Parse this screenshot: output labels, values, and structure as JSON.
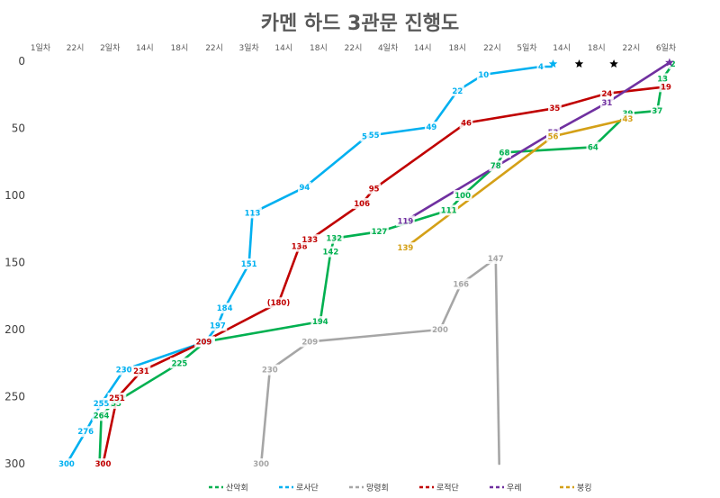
{
  "chart_data": {
    "type": "line",
    "title": "카멘 하드 3관문 진행도",
    "x_ticks": [
      "1일차",
      "22시",
      "2일차",
      "14시",
      "18시",
      "22시",
      "3일차",
      "14시",
      "18시",
      "22시",
      "4일차",
      "14시",
      "18시",
      "22시",
      "5일차",
      "14시",
      "18시",
      "22시",
      "6일차"
    ],
    "y_ticks": [
      "0",
      "50",
      "100",
      "150",
      "200",
      "250",
      "300"
    ],
    "ylim": [
      0,
      300
    ],
    "y_inverted": true,
    "legend_position": "bottom",
    "series": [
      {
        "name": "산악회",
        "color": "#00b050",
        "dash": "none",
        "points": [
          [
            1.7,
            300,
            ""
          ],
          [
            1.75,
            264,
            "264"
          ],
          [
            2.1,
            255,
            "255"
          ],
          [
            4.0,
            225,
            "225"
          ],
          [
            4.75,
            209,
            "209"
          ],
          [
            8.05,
            194,
            "194"
          ],
          [
            8.35,
            142,
            "142"
          ],
          [
            8.45,
            132,
            "132"
          ],
          [
            9.75,
            127,
            "127"
          ],
          [
            11.75,
            111,
            "111"
          ],
          [
            12.15,
            100,
            "100"
          ],
          [
            13.1,
            78,
            "78"
          ],
          [
            13.35,
            68,
            "68"
          ],
          [
            15.9,
            64,
            "64"
          ],
          [
            16.9,
            39,
            "39"
          ],
          [
            17.75,
            37,
            "37"
          ],
          [
            17.9,
            13,
            "13"
          ],
          [
            18.2,
            2,
            "2"
          ]
        ]
      },
      {
        "name": "로사단",
        "color": "#00b0f0",
        "dash": "none",
        "points": [
          [
            0.75,
            300,
            "300"
          ],
          [
            1.3,
            276,
            "276"
          ],
          [
            1.75,
            255,
            "255"
          ],
          [
            2.4,
            230,
            "230"
          ],
          [
            4.75,
            209,
            "209"
          ],
          [
            5.1,
            197,
            "197"
          ],
          [
            5.3,
            184,
            "184"
          ],
          [
            6.0,
            151,
            "151"
          ],
          [
            6.1,
            113,
            "113"
          ],
          [
            7.6,
            94,
            "94"
          ],
          [
            9.4,
            56,
            "56"
          ],
          [
            9.6,
            55,
            "55"
          ],
          [
            11.25,
            49,
            "49"
          ],
          [
            12.0,
            22,
            "22"
          ],
          [
            12.75,
            10,
            "10"
          ],
          [
            14.4,
            4,
            "4"
          ],
          [
            14.7,
            4,
            ""
          ]
        ]
      },
      {
        "name": "망령회",
        "color": "#a6a6a6",
        "dash": "none",
        "points": [
          [
            6.35,
            300,
            "300"
          ],
          [
            6.6,
            230,
            "230"
          ],
          [
            7.75,
            209,
            "209"
          ],
          [
            11.5,
            200,
            "200"
          ],
          [
            12.1,
            166,
            "166"
          ],
          [
            13.1,
            147,
            "147"
          ],
          [
            13.2,
            300,
            ""
          ]
        ]
      },
      {
        "name": "로적단",
        "color": "#c00000",
        "dash": "none",
        "points": [
          [
            1.8,
            300,
            "300"
          ],
          [
            2.2,
            251,
            "251"
          ],
          [
            2.9,
            231,
            "231"
          ],
          [
            4.7,
            209,
            "209"
          ],
          [
            6.85,
            180,
            "(180)"
          ],
          [
            7.45,
            138,
            "138"
          ],
          [
            7.75,
            133,
            "133"
          ],
          [
            9.25,
            106,
            "106"
          ],
          [
            9.6,
            95,
            "95"
          ],
          [
            12.25,
            46,
            "46"
          ],
          [
            14.8,
            35,
            "35"
          ],
          [
            16.3,
            24,
            "24"
          ],
          [
            18.0,
            19,
            "19"
          ]
        ]
      },
      {
        "name": "우레",
        "color": "#7030a0",
        "dash": "none",
        "points": [
          [
            10.5,
            119,
            "119"
          ],
          [
            14.75,
            53,
            "53"
          ],
          [
            16.3,
            31,
            "31"
          ],
          [
            18.1,
            1,
            ""
          ]
        ]
      },
      {
        "name": "붕킹",
        "color": "#d4a017",
        "dash": "none",
        "points": [
          [
            10.5,
            139,
            "139"
          ],
          [
            14.75,
            56,
            "56"
          ],
          [
            16.9,
            43,
            "43"
          ]
        ]
      }
    ],
    "markers": [
      {
        "type": "star",
        "x": 14.75,
        "y": 2,
        "color": "#00b0f0"
      },
      {
        "type": "star",
        "x": 15.5,
        "y": 2,
        "color": "#000000"
      },
      {
        "type": "star",
        "x": 16.5,
        "y": 2,
        "color": "#000000"
      },
      {
        "type": "star",
        "x": 18.1,
        "y": 1,
        "color": "#7030a0"
      }
    ],
    "legend": [
      "산악회",
      "로사단",
      "망령회",
      "로적단",
      "우레",
      "붕킹"
    ]
  }
}
